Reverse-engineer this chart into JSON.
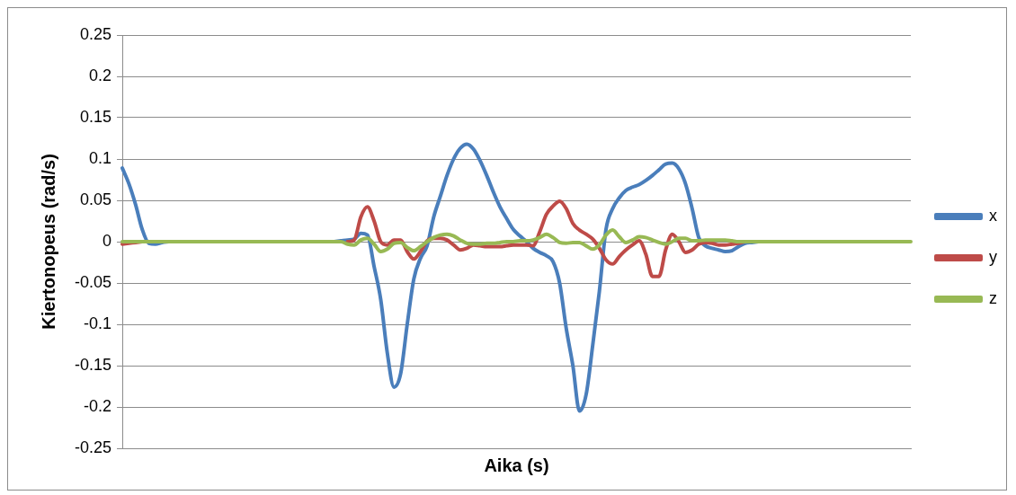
{
  "chart_data": {
    "type": "line",
    "xlabel": "Aika (s)",
    "ylabel": "Kiertonopeus (rad/s)",
    "categories": [
      null,
      null,
      null,
      null,
      null,
      null,
      null,
      null,
      null,
      null,
      null,
      null,
      null,
      null,
      null,
      null,
      null,
      null,
      null,
      null,
      null,
      null,
      null,
      null,
      null,
      null,
      null,
      null,
      null,
      null,
      null,
      null,
      null,
      null,
      null,
      null,
      null,
      null,
      null,
      null,
      null,
      null,
      null,
      null,
      null,
      null,
      null,
      null,
      null,
      null,
      null,
      null,
      null,
      null,
      null,
      null,
      null,
      null,
      null,
      null,
      null,
      null,
      null,
      null,
      null,
      null,
      null,
      null,
      null,
      null,
      null,
      null,
      null,
      null,
      null,
      null,
      null,
      null,
      null,
      null,
      null,
      null,
      null,
      null,
      null,
      null,
      null,
      null,
      null,
      null,
      null,
      null,
      null,
      null,
      null,
      null,
      null,
      null,
      null,
      null,
      null,
      null,
      null,
      null,
      null,
      null,
      null,
      null,
      null,
      null,
      null,
      null,
      null,
      null,
      null,
      null,
      null,
      null,
      null,
      null
    ],
    "series": [
      {
        "name": "x",
        "color": "#4a7ebb",
        "values": [
          0.089,
          0.07,
          0.045,
          0.015,
          -0.002,
          -0.003,
          -0.001,
          0,
          null,
          null,
          null,
          null,
          null,
          null,
          null,
          null,
          null,
          null,
          null,
          null,
          null,
          null,
          null,
          null,
          null,
          null,
          null,
          null,
          null,
          null,
          null,
          null,
          0,
          0.001,
          0.002,
          0.003,
          0.01,
          0.008,
          -0.03,
          -0.07,
          -0.135,
          -0.176,
          -0.16,
          -0.1,
          -0.045,
          -0.02,
          -0.005,
          0.03,
          0.055,
          0.08,
          0.1,
          0.113,
          0.118,
          0.112,
          0.098,
          0.08,
          0.06,
          0.042,
          0.028,
          0.015,
          0.007,
          0,
          -0.008,
          -0.013,
          -0.017,
          -0.024,
          -0.05,
          -0.105,
          -0.15,
          -0.205,
          -0.185,
          -0.125,
          -0.06,
          0.015,
          0.04,
          0.053,
          0.062,
          0.066,
          0.069,
          0.074,
          0.08,
          0.087,
          0.094,
          0.095,
          0.088,
          0.07,
          0.04,
          0.005,
          -0.005,
          -0.008,
          -0.01,
          -0.012,
          -0.011,
          -0.006,
          -0.002,
          -0.001,
          0,
          null,
          null,
          null,
          null,
          null,
          null,
          null,
          null,
          null,
          null,
          null,
          null,
          null,
          null,
          null,
          null,
          null,
          null,
          null,
          null,
          null,
          null,
          null
        ]
      },
      {
        "name": "y",
        "color": "#be4b48",
        "values": [
          -0.003,
          -0.002,
          -0.001,
          0,
          null,
          null,
          null,
          null,
          null,
          null,
          null,
          null,
          null,
          null,
          null,
          null,
          null,
          null,
          null,
          null,
          null,
          null,
          null,
          null,
          null,
          null,
          null,
          null,
          null,
          null,
          null,
          null,
          null,
          null,
          0,
          0.002,
          0.03,
          0.042,
          0.025,
          0,
          -0.004,
          0.002,
          0.002,
          -0.012,
          -0.021,
          -0.012,
          0.001,
          0.004,
          0.004,
          0.002,
          -0.004,
          -0.01,
          -0.008,
          -0.004,
          -0.005,
          -0.006,
          -0.006,
          -0.006,
          -0.005,
          -0.004,
          -0.004,
          -0.004,
          -0.005,
          0.012,
          0.033,
          0.043,
          0.049,
          0.04,
          0.022,
          0.014,
          0.009,
          0.003,
          -0.008,
          -0.022,
          -0.027,
          -0.018,
          -0.01,
          -0.004,
          0.001,
          -0.015,
          -0.042,
          -0.042,
          -0.01,
          0.009,
          0,
          -0.013,
          -0.01,
          -0.003,
          -0.001,
          -0.002,
          -0.004,
          -0.004,
          -0.003,
          -0.002,
          0,
          null,
          null,
          null,
          null,
          null,
          null,
          null,
          null,
          null,
          null,
          null,
          null,
          null,
          null,
          null,
          null,
          null,
          null,
          null,
          null,
          null,
          null,
          null,
          null,
          null
        ]
      },
      {
        "name": "z",
        "color": "#98b954",
        "values": [
          0,
          0,
          0,
          0,
          0,
          0,
          0,
          0,
          0,
          0,
          0,
          0,
          0,
          0,
          0,
          0,
          0,
          0,
          0,
          0,
          0,
          0,
          0,
          0,
          0,
          0,
          0,
          0,
          0,
          0,
          0,
          0,
          0,
          0,
          -0.003,
          -0.004,
          0.002,
          0.004,
          -0.003,
          -0.012,
          -0.009,
          -0.002,
          -0.001,
          -0.007,
          -0.011,
          -0.006,
          0,
          0.005,
          0.008,
          0.009,
          0.007,
          0.002,
          -0.002,
          -0.003,
          -0.003,
          -0.002,
          -0.002,
          -0.001,
          0,
          0,
          0.001,
          0.001,
          0.002,
          0.005,
          0.009,
          0.005,
          -0.001,
          -0.002,
          -0.001,
          -0.001,
          -0.005,
          -0.009,
          -0.004,
          0.008,
          0.014,
          0.006,
          -0.001,
          0.002,
          0.006,
          0.005,
          0.002,
          -0.001,
          -0.003,
          0,
          0.004,
          0.004,
          0.001,
          0.001,
          0.002,
          0.002,
          0.002,
          0.002,
          0.001,
          0,
          0,
          0,
          0,
          0,
          0,
          0,
          0,
          0,
          0,
          0,
          0,
          0,
          0,
          0,
          0,
          0,
          0,
          0,
          0,
          0,
          0,
          0,
          0,
          0,
          0,
          0
        ]
      }
    ],
    "ylim": [
      -0.25,
      0.25
    ],
    "yticks": [
      -0.25,
      -0.2,
      -0.15,
      -0.1,
      -0.05,
      0,
      0.05,
      0.1,
      0.15,
      0.2,
      0.25
    ],
    "grid": "y",
    "legend": "right",
    "tick_labels": "y",
    "marker": "none",
    "line_style": "solid"
  }
}
